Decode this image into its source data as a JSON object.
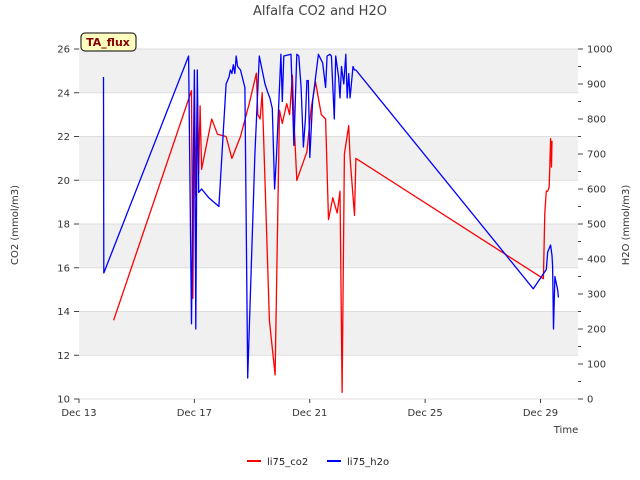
{
  "chart_data": {
    "type": "line",
    "title": "Alfalfa CO2 and H2O",
    "xlabel": "Time",
    "ylabel_left": "CO2 (mmol/m3)",
    "ylabel_right": "H2O (mmol/m3)",
    "badge": "TA_flux",
    "x_range_days": [
      0,
      17.3
    ],
    "x_ticks": [
      {
        "day": 0,
        "label": "Dec 13"
      },
      {
        "day": 4,
        "label": "Dec 17"
      },
      {
        "day": 8,
        "label": "Dec 21"
      },
      {
        "day": 12,
        "label": "Dec 25"
      },
      {
        "day": 16,
        "label": "Dec 29"
      }
    ],
    "ylim_left": [
      10,
      26
    ],
    "yticks_left": [
      10,
      12,
      14,
      16,
      18,
      20,
      22,
      24,
      26
    ],
    "ylim_right": [
      0,
      1000
    ],
    "yticks_right": [
      0,
      100,
      200,
      300,
      400,
      500,
      600,
      700,
      800,
      900,
      1000
    ],
    "grid": true,
    "bands": "alternating-gray",
    "legend_position": "bottom-center",
    "colors": {
      "co2": "#ff0000",
      "h2o": "#0000ff"
    },
    "series": [
      {
        "name": "li75_co2",
        "axis": "left",
        "color": "#ff0000",
        "points": [
          [
            1.2,
            13.6
          ],
          [
            3.9,
            24.1
          ],
          [
            3.95,
            14.6
          ],
          [
            4.0,
            24.3
          ],
          [
            4.05,
            19.3
          ],
          [
            4.1,
            24.1
          ],
          [
            4.15,
            20.3
          ],
          [
            4.2,
            23.4
          ],
          [
            4.25,
            20.5
          ],
          [
            4.6,
            22.8
          ],
          [
            4.8,
            22.1
          ],
          [
            5.1,
            22.0
          ],
          [
            5.3,
            21.0
          ],
          [
            5.6,
            22.0
          ],
          [
            5.9,
            23.5
          ],
          [
            6.15,
            24.9
          ],
          [
            6.2,
            23.0
          ],
          [
            6.28,
            22.8
          ],
          [
            6.35,
            24.0
          ],
          [
            6.6,
            13.6
          ],
          [
            6.8,
            11.1
          ],
          [
            6.95,
            23.2
          ],
          [
            7.05,
            22.6
          ],
          [
            7.2,
            23.5
          ],
          [
            7.3,
            23.0
          ],
          [
            7.4,
            24.8
          ],
          [
            7.45,
            22.8
          ],
          [
            7.55,
            20.0
          ],
          [
            7.9,
            21.3
          ],
          [
            8.05,
            23.3
          ],
          [
            8.2,
            24.5
          ],
          [
            8.4,
            23.0
          ],
          [
            8.55,
            22.8
          ],
          [
            8.65,
            18.2
          ],
          [
            8.8,
            19.2
          ],
          [
            8.95,
            18.5
          ],
          [
            9.05,
            19.5
          ],
          [
            9.12,
            10.3
          ],
          [
            9.2,
            21.2
          ],
          [
            9.35,
            22.5
          ],
          [
            9.4,
            21.0
          ],
          [
            9.55,
            18.4
          ],
          [
            9.6,
            21.0
          ],
          [
            16.1,
            15.5
          ],
          [
            16.15,
            18.5
          ],
          [
            16.2,
            19.5
          ],
          [
            16.25,
            19.5
          ],
          [
            16.3,
            19.7
          ],
          [
            16.35,
            21.9
          ],
          [
            16.38,
            20.6
          ],
          [
            16.4,
            21.8
          ]
        ]
      },
      {
        "name": "li75_h2o",
        "axis": "right",
        "color": "#0000ff",
        "points": [
          [
            0.85,
            920
          ],
          [
            0.86,
            360
          ],
          [
            3.8,
            980
          ],
          [
            3.9,
            215
          ],
          [
            4.0,
            940
          ],
          [
            4.05,
            200
          ],
          [
            4.1,
            940
          ],
          [
            4.15,
            590
          ],
          [
            4.25,
            600
          ],
          [
            4.5,
            575
          ],
          [
            4.85,
            550
          ],
          [
            5.1,
            900
          ],
          [
            5.2,
            920
          ],
          [
            5.25,
            940
          ],
          [
            5.3,
            930
          ],
          [
            5.35,
            955
          ],
          [
            5.4,
            930
          ],
          [
            5.45,
            980
          ],
          [
            5.5,
            950
          ],
          [
            5.6,
            940
          ],
          [
            5.75,
            890
          ],
          [
            5.85,
            60
          ],
          [
            6.1,
            700
          ],
          [
            6.25,
            980
          ],
          [
            6.3,
            960
          ],
          [
            6.45,
            900
          ],
          [
            6.55,
            875
          ],
          [
            6.62,
            860
          ],
          [
            6.7,
            830
          ],
          [
            6.78,
            600
          ],
          [
            6.85,
            700
          ],
          [
            7.0,
            985
          ],
          [
            7.05,
            850
          ],
          [
            7.1,
            980
          ],
          [
            7.35,
            985
          ],
          [
            7.45,
            725
          ],
          [
            7.55,
            985
          ],
          [
            7.62,
            980
          ],
          [
            7.7,
            890
          ],
          [
            7.78,
            720
          ],
          [
            7.85,
            800
          ],
          [
            7.9,
            910
          ],
          [
            7.95,
            910
          ],
          [
            8.0,
            690
          ],
          [
            8.1,
            850
          ],
          [
            8.3,
            985
          ],
          [
            8.45,
            960
          ],
          [
            8.55,
            890
          ],
          [
            8.6,
            980
          ],
          [
            8.7,
            985
          ],
          [
            8.75,
            980
          ],
          [
            8.85,
            800
          ],
          [
            8.9,
            980
          ],
          [
            9.0,
            920
          ],
          [
            9.05,
            860
          ],
          [
            9.1,
            950
          ],
          [
            9.18,
            900
          ],
          [
            9.25,
            985
          ],
          [
            9.3,
            860
          ],
          [
            9.35,
            930
          ],
          [
            9.4,
            860
          ],
          [
            9.5,
            950
          ],
          [
            9.55,
            940
          ],
          [
            9.6,
            940
          ],
          [
            15.75,
            315
          ],
          [
            16.2,
            370
          ],
          [
            16.25,
            420
          ],
          [
            16.35,
            440
          ],
          [
            16.4,
            410
          ],
          [
            16.42,
            380
          ],
          [
            16.45,
            200
          ],
          [
            16.5,
            350
          ],
          [
            16.6,
            310
          ],
          [
            16.62,
            290
          ]
        ]
      }
    ]
  }
}
